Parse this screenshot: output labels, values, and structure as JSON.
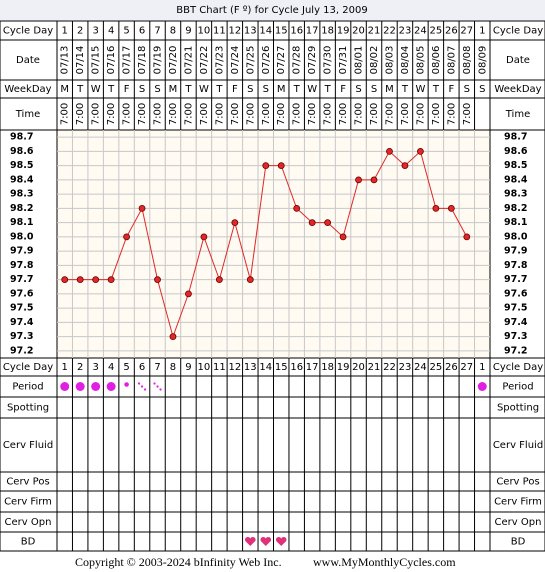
{
  "chart_data": {
    "type": "line",
    "title": "BBT Chart (F º) for Cycle July 13, 2009",
    "row_labels": {
      "cycle_day": "Cycle Day",
      "date": "Date",
      "weekday": "WeekDay",
      "time": "Time",
      "period": "Period",
      "spotting": "Spotting",
      "cerv_fluid": "Cerv Fluid",
      "cerv_pos": "Cerv Pos",
      "cerv_firm": "Cerv Firm",
      "cerv_opn": "Cerv Opn",
      "bd": "BD"
    },
    "cycle_days": [
      1,
      2,
      3,
      4,
      5,
      6,
      7,
      8,
      9,
      10,
      11,
      12,
      13,
      14,
      15,
      16,
      17,
      18,
      19,
      20,
      21,
      22,
      23,
      24,
      25,
      26,
      27,
      1
    ],
    "categories": [
      "07/13",
      "07/14",
      "07/15",
      "07/16",
      "07/17",
      "07/18",
      "07/19",
      "07/20",
      "07/21",
      "07/22",
      "07/23",
      "07/24",
      "07/25",
      "07/26",
      "07/27",
      "07/28",
      "07/29",
      "07/30",
      "07/31",
      "08/01",
      "08/02",
      "08/03",
      "08/04",
      "08/05",
      "08/06",
      "08/07",
      "08/08",
      "08/09"
    ],
    "weekdays": [
      "M",
      "T",
      "W",
      "T",
      "F",
      "S",
      "S",
      "M",
      "T",
      "W",
      "T",
      "F",
      "S",
      "S",
      "M",
      "T",
      "W",
      "T",
      "F",
      "S",
      "S",
      "M",
      "T",
      "W",
      "T",
      "F",
      "S",
      "S"
    ],
    "times": [
      "7:00",
      "7:00",
      "7:00",
      "7:00",
      "7:00",
      "7:00",
      "7:00",
      "7:00",
      "7:00",
      "7:00",
      "7:00",
      "7:00",
      "7:00",
      "7:00",
      "7:00",
      "7:00",
      "7:00",
      "7:00",
      "7:00",
      "7:00",
      "7:00",
      "7:00",
      "7:00",
      "7:00",
      "7:00",
      "7:00",
      "7:00",
      null
    ],
    "values": [
      97.7,
      97.7,
      97.7,
      97.7,
      98.0,
      98.2,
      97.7,
      97.3,
      97.6,
      98.0,
      97.7,
      98.1,
      97.7,
      98.5,
      98.5,
      98.2,
      98.1,
      98.1,
      98.0,
      98.4,
      98.4,
      98.6,
      98.5,
      98.6,
      98.2,
      98.2,
      98.0,
      null
    ],
    "color": "#e02828",
    "ylim": [
      97.15,
      98.75
    ],
    "yticks": [
      98.7,
      98.6,
      98.5,
      98.4,
      98.3,
      98.2,
      98.1,
      {
        "value": 98.0,
        "label": "98.0"
      },
      97.9,
      97.8,
      97.7,
      97.6,
      97.5,
      97.4,
      97.3,
      97.2
    ],
    "grid": true,
    "footer": [
      "Copyright © 2003-2024 bInfinity Web Inc.",
      "www.MyMonthlyCycles.com"
    ]
  }
}
